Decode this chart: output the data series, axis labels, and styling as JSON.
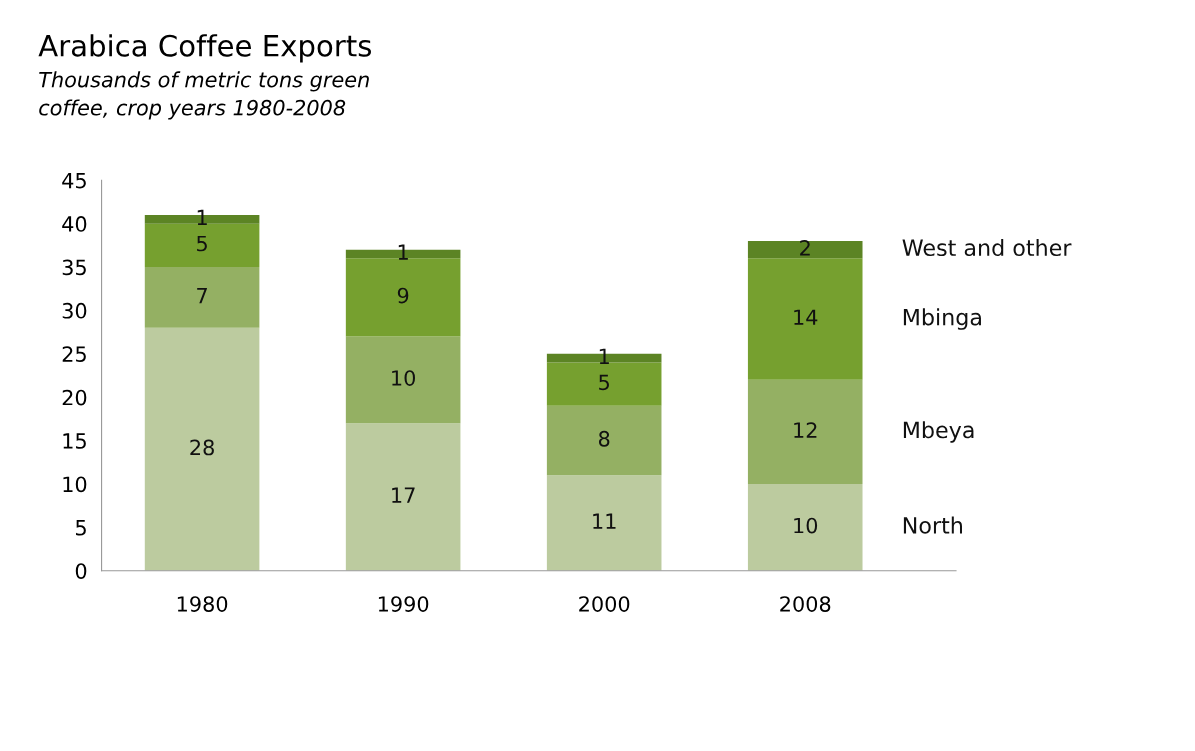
{
  "chart_data": {
    "type": "bar",
    "stacked": true,
    "title": "Arabica Coffee Exports",
    "subtitle": "Thousands of metric tons green\ncoffee, crop years 1980-2008",
    "categories": [
      "1980",
      "1990",
      "2000",
      "2008"
    ],
    "series": [
      {
        "name": "North",
        "color": "#bccb9f",
        "values": [
          28,
          17,
          11,
          10
        ]
      },
      {
        "name": "Mbeya",
        "color": "#94b063",
        "values": [
          7,
          10,
          8,
          12
        ]
      },
      {
        "name": "Mbinga",
        "color": "#76a02f",
        "values": [
          5,
          9,
          5,
          14
        ]
      },
      {
        "name": "West and other",
        "color": "#5c8424",
        "values": [
          1,
          1,
          1,
          2
        ]
      }
    ],
    "ylim": [
      0,
      45
    ],
    "yticks": [
      0,
      5,
      10,
      15,
      20,
      25,
      30,
      35,
      40,
      45
    ],
    "data_labels": true,
    "grid": false,
    "legend": false
  }
}
